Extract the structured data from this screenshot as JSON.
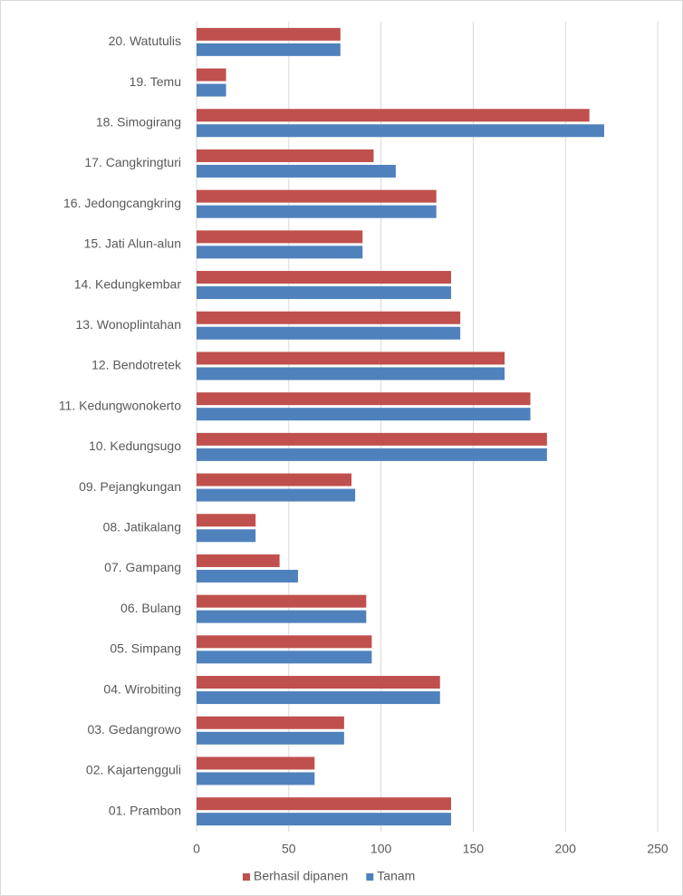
{
  "chart_data": {
    "type": "bar",
    "orientation": "horizontal",
    "categories": [
      "01. Prambon",
      "02. Kajartengguli",
      "03. Gedangrowo",
      "04. Wirobiting",
      "05. Simpang",
      "06. Bulang",
      "07. Gampang",
      "08. Jatikalang",
      "09. Pejangkungan",
      "10. Kedungsugo",
      "11. Kedungwonokerto",
      "12. Bendotretek",
      "13. Wonoplintahan",
      "14. Kedungkembar",
      "15. Jati Alun-alun",
      "16. Jedongcangkring",
      "17. Cangkringturi",
      "18. Simogirang",
      "19. Temu",
      "20. Watutulis"
    ],
    "series": [
      {
        "name": "Berhasil dipanen",
        "color": "#c0504d",
        "values": [
          138,
          64,
          80,
          132,
          95,
          92,
          45,
          32,
          84,
          190,
          181,
          167,
          143,
          138,
          90,
          130,
          96,
          213,
          16,
          78
        ]
      },
      {
        "name": "Tanam",
        "color": "#4f81bd",
        "values": [
          138,
          64,
          80,
          132,
          95,
          92,
          55,
          32,
          86,
          190,
          181,
          167,
          143,
          138,
          90,
          130,
          108,
          221,
          16,
          78
        ]
      }
    ],
    "xlim": [
      0,
      250
    ],
    "xticks": [
      0,
      50,
      100,
      150,
      200,
      250
    ],
    "grid": true,
    "legend": "bottom"
  }
}
